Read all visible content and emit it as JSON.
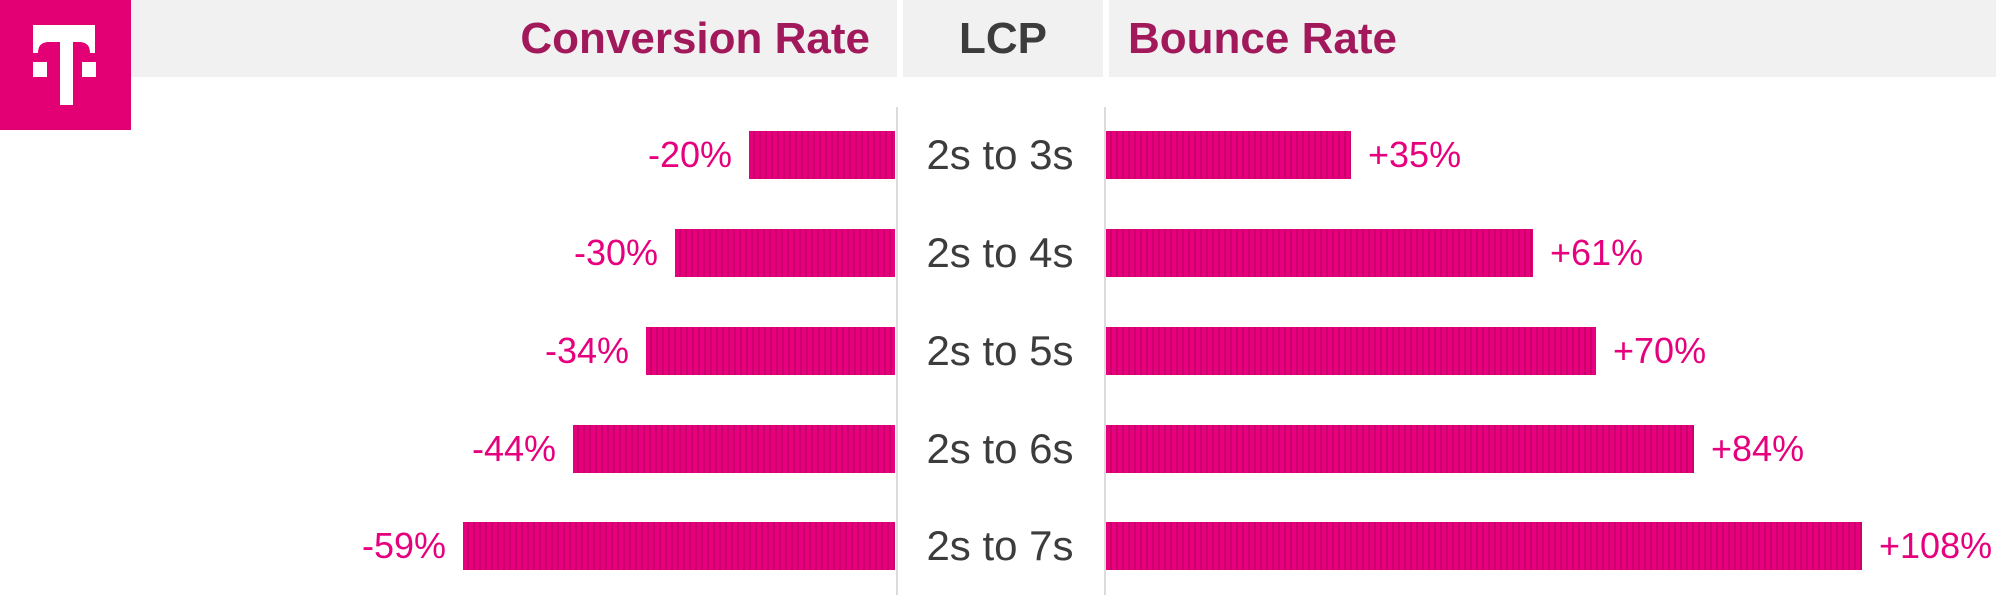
{
  "brand": {
    "name": "telekom",
    "logo_color": "#e20074",
    "logo_glyph": "T with side dots"
  },
  "header": {
    "conversion_rate_label": "Conversion Rate",
    "lcp_label": "LCP",
    "bounce_rate_label": "Bounce Rate",
    "background": "#f1f1f1",
    "brand_text_color": "#a2195b",
    "neutral_text_color": "#3c3c3c"
  },
  "chart_data": {
    "type": "bar",
    "orientation": "horizontal-diverging",
    "categories": [
      "2s to 3s",
      "2s to 4s",
      "2s to 5s",
      "2s to 6s",
      "2s to 7s"
    ],
    "series": [
      {
        "name": "Conversion Rate",
        "direction": "left",
        "values": [
          -20,
          -30,
          -34,
          -44,
          -59
        ],
        "labels": [
          "-20%",
          "-30%",
          "-34%",
          "-44%",
          "-59%"
        ]
      },
      {
        "name": "Bounce Rate",
        "direction": "right",
        "values": [
          35,
          61,
          70,
          84,
          108
        ],
        "labels": [
          "+35%",
          "+61%",
          "+70%",
          "+84%",
          "+108%"
        ]
      }
    ],
    "bar_color": "#e6007e",
    "bar_stripe_color": "#cb0068",
    "value_label_color": "#e6007e",
    "axis_line_color": "#dcdcdc",
    "legend_position": "none",
    "grid": false
  }
}
